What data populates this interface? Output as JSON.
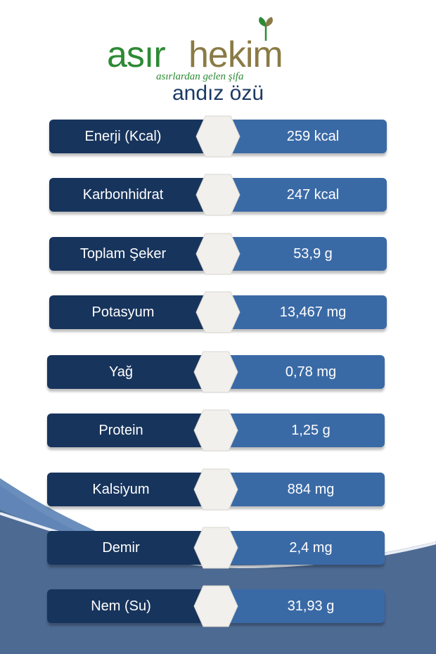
{
  "brand": {
    "name_part1": "asır",
    "name_part2": "hekim",
    "tagline": "asırlardan gelen şifa"
  },
  "product_title": "andız özü",
  "nutrition": [
    {
      "label": "Enerji (Kcal)",
      "value": "259 kcal"
    },
    {
      "label": "Karbonhidrat",
      "value": "247 kcal"
    },
    {
      "label": "Toplam Şeker",
      "value": "53,9 g"
    },
    {
      "label": "Potasyum",
      "value": "13,467 mg"
    },
    {
      "label": "Yağ",
      "value": "0,78 mg"
    },
    {
      "label": "Protein",
      "value": "1,25 g"
    },
    {
      "label": "Kalsiyum",
      "value": "884 mg"
    },
    {
      "label": "Demir",
      "value": "2,4 mg"
    },
    {
      "label": "Nem (Su)",
      "value": "31,93  g"
    }
  ],
  "colors": {
    "label_bg": "#17345c",
    "value_bg": "#3a6aa6",
    "hex_fill": "#f2f0ec",
    "brand_green": "#2d8a34",
    "brand_gold": "#8a7a45",
    "title_color": "#1b3a63"
  }
}
